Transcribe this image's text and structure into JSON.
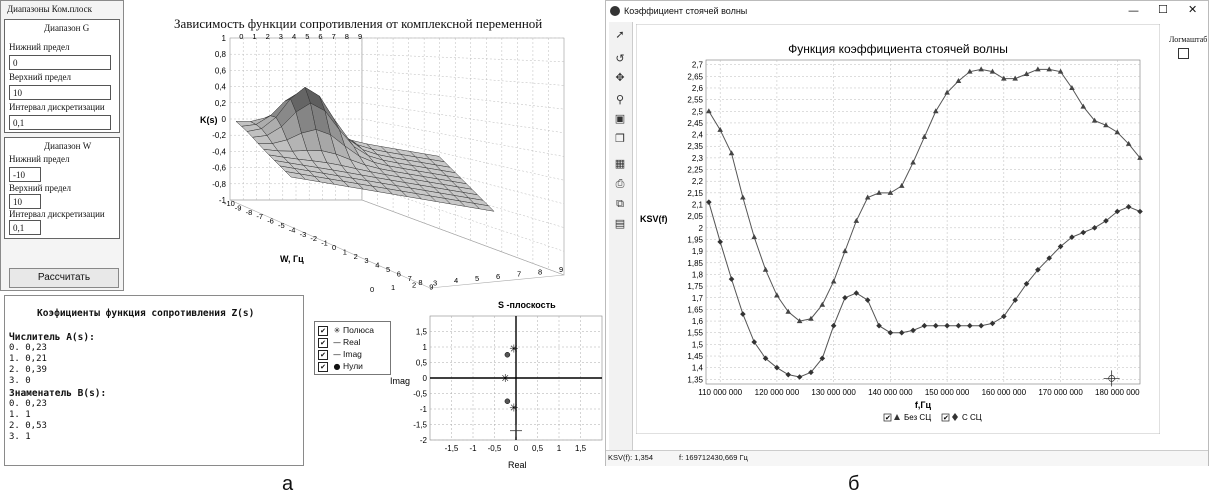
{
  "left": {
    "header_title": "Диапазоны Ком.плоск",
    "range_g": {
      "title": "Диапазон G",
      "lower_label": "Нижний предел",
      "lower_value": "0",
      "upper_label": "Верхний предел",
      "upper_value": "10",
      "step_label": "Интервал дискретизации",
      "step_value": "0,1"
    },
    "range_w": {
      "title": "Диапазон W",
      "lower_label": "Нижний предел",
      "lower_value": "-10",
      "upper_label": "Верхний предел",
      "upper_value": "10",
      "step_label": "Интервал дискретизации",
      "step_value": "0,1"
    },
    "calc_button": "Рассчитать",
    "surface_title": "Зависимость функции сопротивления  от комплексной переменной",
    "surface_zlabel": "K(s)",
    "surface_wlabel": "W, Гц",
    "surface_zticks": [
      "1",
      "0,8",
      "0,6",
      "0,4",
      "0,2",
      "0",
      "-0,2",
      "-0,4",
      "-0,6",
      "-0,8",
      "-1"
    ],
    "surface_top_ticks": [
      "0",
      "1",
      "2",
      "3",
      "4",
      "5",
      "6",
      "7",
      "8",
      "9"
    ],
    "surface_w_ticks": [
      "-10",
      "-9",
      "-8",
      "-7",
      "-6",
      "-5",
      "-4",
      "-3",
      "-2",
      "-1",
      "0",
      "1",
      "2",
      "3",
      "4",
      "5",
      "6",
      "7",
      "8",
      "9"
    ],
    "surface_g_ticks": [
      "0",
      "1",
      "2",
      "3",
      "4",
      "5",
      "6",
      "7",
      "8",
      "9"
    ],
    "coef": {
      "title": "Коэфициенты функция сопротивления Z(s)",
      "num_label": "Числитель A(s):",
      "num_items": [
        "0. 0,23",
        "1. 0,21",
        "2. 0,39",
        "3. 0"
      ],
      "den_label": "Знаменатель B(s):",
      "den_items": [
        "0. 0,23",
        "1. 1",
        "2. 0,53",
        "3. 1"
      ]
    },
    "legend": [
      {
        "label": "Полюса",
        "checked": true,
        "icon": "asterisk-marker"
      },
      {
        "label": "Real",
        "checked": true,
        "icon": "line-marker"
      },
      {
        "label": "Imag",
        "checked": true,
        "icon": "line-marker"
      },
      {
        "label": "Нули",
        "checked": true,
        "icon": "dot-marker"
      }
    ],
    "caption": "а"
  },
  "splane": {
    "chart_data": {
      "type": "scatter",
      "title": "S -плоскость",
      "xlabel": "Real",
      "ylabel": "Imag",
      "xlim": [
        -2,
        2
      ],
      "ylim": [
        -2,
        2
      ],
      "xticks": [
        "-1,5",
        "-1",
        "-0,5",
        "0",
        "0,5",
        "1",
        "1,5"
      ],
      "yticks": [
        "1,5",
        "1",
        "0,5",
        "0",
        "-0,5",
        "-1",
        "-1,5",
        "-2"
      ],
      "series": [
        {
          "name": "Полюса",
          "points": [
            [
              -0.05,
              0.95
            ],
            [
              -0.25,
              0
            ],
            [
              -0.05,
              -0.95
            ]
          ]
        },
        {
          "name": "Нули",
          "points": [
            [
              -0.2,
              0.75
            ],
            [
              -0.2,
              -0.75
            ]
          ]
        }
      ],
      "crosshair": [
        0,
        -1.7
      ]
    }
  },
  "right": {
    "window_title": "Коэффициент стоячей волны",
    "window_controls": {
      "minimize": "—",
      "maximize": "☐",
      "close": "✕"
    },
    "log_label": "Логмаштаб",
    "toolbar_icons": [
      "cursor-icon",
      "undo-icon",
      "move-icon",
      "zoom-icon",
      "zoom-fit-icon",
      "copy-icon",
      "print-setup-icon",
      "print-icon",
      "copy-image-icon",
      "save-icon"
    ],
    "status_left": "KSV(f): 1,354",
    "status_right": "f: 169712430,669 Гц",
    "caption": "б",
    "chart_data": {
      "type": "line",
      "title": "Функция коэффициента стоячей волны",
      "xlabel": "f,Гц",
      "ylabel": "KSV(f)",
      "xlim": [
        107500000,
        184000000
      ],
      "ylim": [
        1.33,
        2.72
      ],
      "xticks": [
        110000000,
        120000000,
        130000000,
        140000000,
        150000000,
        160000000,
        170000000,
        180000000
      ],
      "xtick_labels": [
        "110 000 000",
        "120 000 000",
        "130 000 000",
        "140 000 000",
        "150 000 000",
        "160 000 000",
        "170 000 000",
        "180 000 000"
      ],
      "yticks": [
        "2,7",
        "2,65",
        "2,6",
        "2,55",
        "2,5",
        "2,45",
        "2,4",
        "2,35",
        "2,3",
        "2,25",
        "2,2",
        "2,15",
        "2,1",
        "2,05",
        "2",
        "1,95",
        "1,9",
        "1,85",
        "1,8",
        "1,75",
        "1,7",
        "1,65",
        "1,6",
        "1,55",
        "1,5",
        "1,45",
        "1,4",
        "1,35"
      ],
      "series": [
        {
          "name": "Без СЦ",
          "marker": "triangle",
          "x": [
            108000000,
            110000000,
            112000000,
            114000000,
            116000000,
            118000000,
            120000000,
            122000000,
            124000000,
            126000000,
            128000000,
            130000000,
            132000000,
            134000000,
            136000000,
            138000000,
            140000000,
            142000000,
            144000000,
            146000000,
            148000000,
            150000000,
            152000000,
            154000000,
            156000000,
            158000000,
            160000000,
            162000000,
            164000000,
            166000000,
            168000000,
            170000000,
            172000000,
            174000000,
            176000000,
            178000000,
            180000000,
            182000000,
            184000000
          ],
          "values": [
            2.5,
            2.42,
            2.32,
            2.13,
            1.96,
            1.82,
            1.71,
            1.64,
            1.6,
            1.61,
            1.67,
            1.77,
            1.9,
            2.03,
            2.13,
            2.15,
            2.15,
            2.18,
            2.28,
            2.39,
            2.5,
            2.58,
            2.63,
            2.67,
            2.68,
            2.67,
            2.64,
            2.64,
            2.66,
            2.68,
            2.68,
            2.67,
            2.6,
            2.52,
            2.46,
            2.44,
            2.41,
            2.36,
            2.3
          ]
        },
        {
          "name": "С СЦ",
          "marker": "diamond",
          "x": [
            108000000,
            110000000,
            112000000,
            114000000,
            116000000,
            118000000,
            120000000,
            122000000,
            124000000,
            126000000,
            128000000,
            130000000,
            132000000,
            134000000,
            136000000,
            138000000,
            140000000,
            142000000,
            144000000,
            146000000,
            148000000,
            150000000,
            152000000,
            154000000,
            156000000,
            158000000,
            160000000,
            162000000,
            164000000,
            166000000,
            168000000,
            170000000,
            172000000,
            174000000,
            176000000,
            178000000,
            180000000,
            182000000,
            184000000
          ],
          "values": [
            2.11,
            1.94,
            1.78,
            1.63,
            1.51,
            1.44,
            1.4,
            1.37,
            1.36,
            1.38,
            1.44,
            1.58,
            1.7,
            1.72,
            1.69,
            1.58,
            1.55,
            1.55,
            1.56,
            1.58,
            1.58,
            1.58,
            1.58,
            1.58,
            1.58,
            1.59,
            1.62,
            1.69,
            1.76,
            1.82,
            1.87,
            1.92,
            1.96,
            1.98,
            2.0,
            2.03,
            2.07,
            2.09,
            2.07
          ]
        }
      ],
      "crosshair": [
        179000000,
        1.354
      ],
      "legend_placement": "bottom"
    }
  }
}
